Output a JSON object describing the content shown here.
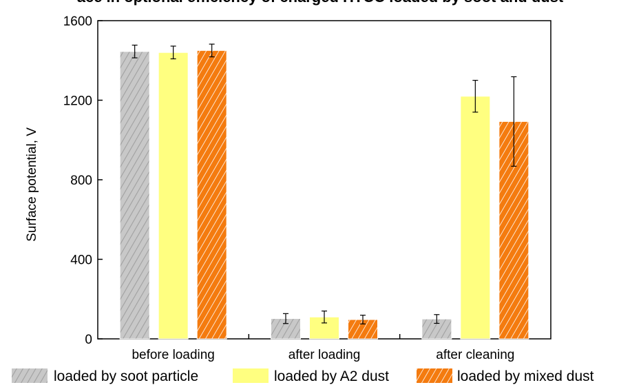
{
  "chart_data": {
    "type": "bar",
    "title": "ace in optional efficiency of charged HTCC loaded by soot and dust",
    "ylabel": "Surface potential, V",
    "xlabel": "",
    "ylim": [
      0,
      1600
    ],
    "yticks": [
      0,
      400,
      800,
      1200,
      1600
    ],
    "categories": [
      "before loading",
      "after loading",
      "after cleaning"
    ],
    "series": [
      {
        "name": "loaded by soot particle",
        "values": [
          1445,
          102,
          100
        ],
        "errors": [
          32,
          25,
          22
        ],
        "color": "#c8c8c8",
        "hatch_color": "#a0a0a0"
      },
      {
        "name": "loaded by A2 dust",
        "values": [
          1440,
          110,
          1220
        ],
        "errors": [
          32,
          30,
          80
        ],
        "color": "#ffff80",
        "hatch_color": "#ffff80"
      },
      {
        "name": "loaded by mixed dust",
        "values": [
          1450,
          97,
          1093
        ],
        "errors": [
          32,
          22,
          225
        ],
        "color": "#f47b0f",
        "hatch_color": "#ffffff"
      }
    ],
    "legend_position": "bottom",
    "grid": false
  }
}
